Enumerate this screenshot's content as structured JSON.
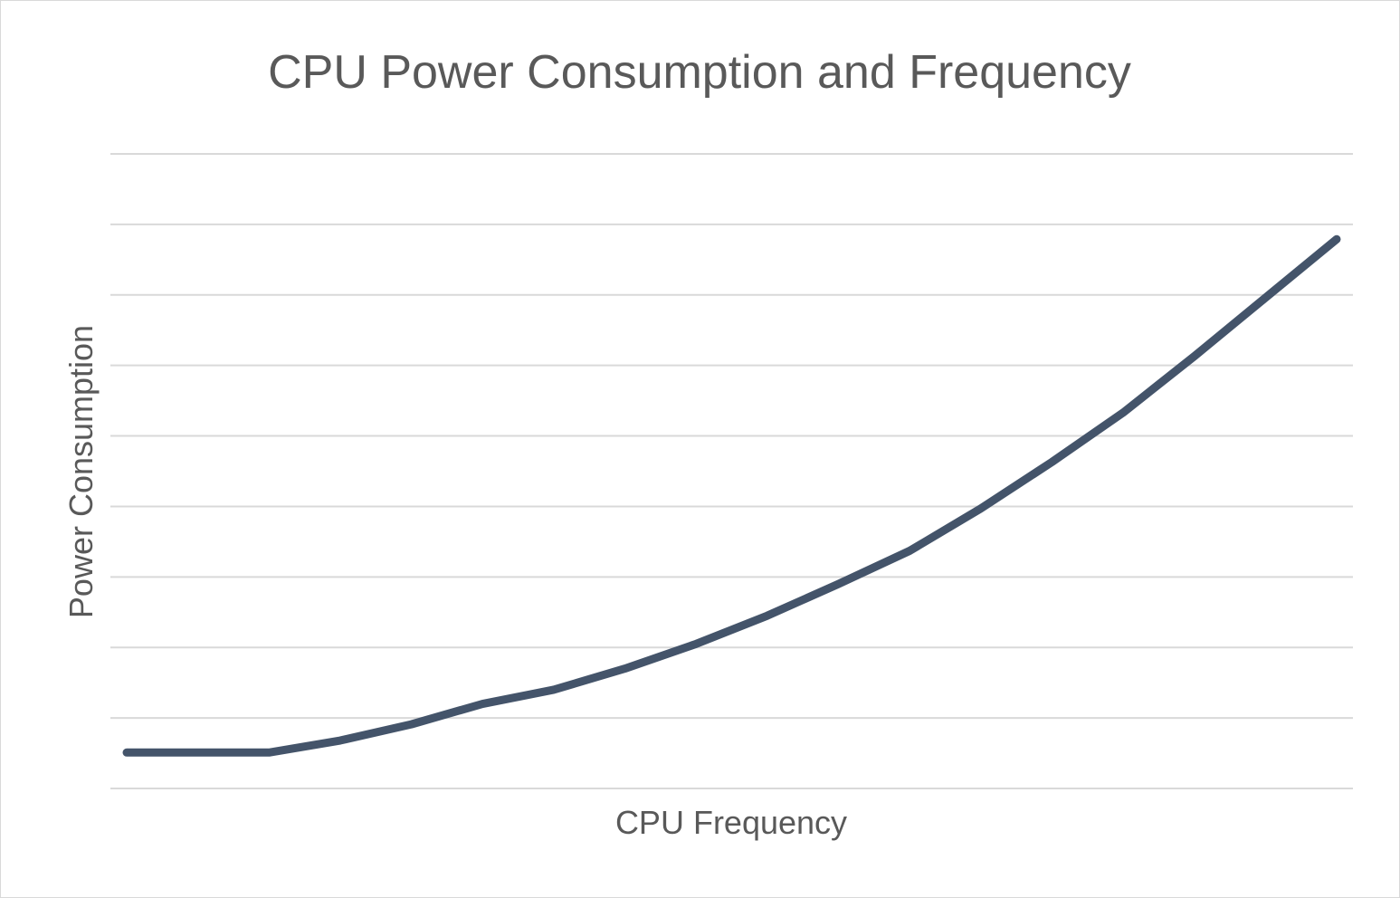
{
  "chart_data": {
    "type": "line",
    "title": "CPU Power Consumption and Frequency",
    "xlabel": "CPU Frequency",
    "ylabel": "Power Consumption",
    "ylim": [
      0,
      9
    ],
    "grid": true,
    "legend": "none",
    "x": [
      1,
      2,
      3,
      4,
      5,
      6,
      7,
      8,
      9,
      10,
      11,
      12,
      13,
      14,
      15,
      16,
      17,
      18
    ],
    "series": [
      {
        "values": [
          0.51,
          0.51,
          0.51,
          0.68,
          0.91,
          1.2,
          1.4,
          1.7,
          2.05,
          2.45,
          2.9,
          3.37,
          3.97,
          4.63,
          5.33,
          6.13,
          6.96,
          7.79
        ],
        "color": "#44546a"
      }
    ],
    "colors": {
      "grid": "#d9d9d9",
      "text": "#595959",
      "border": "#d9d9d9"
    }
  }
}
